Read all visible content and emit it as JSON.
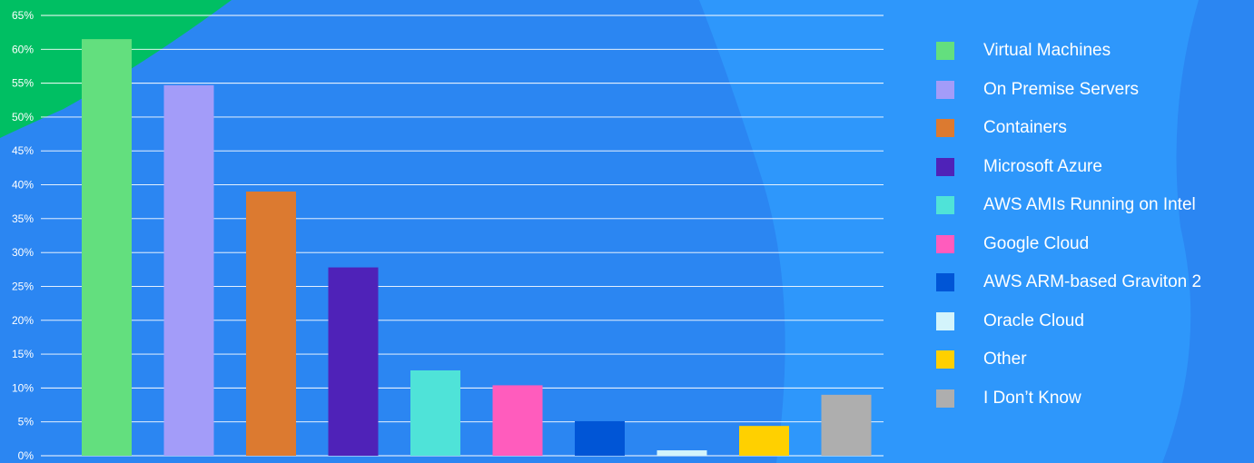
{
  "colors": {
    "background": "#2b86f2",
    "gridline": "#ffffff",
    "axis_text": "#ffffff"
  },
  "chart_data": {
    "type": "bar",
    "title": "",
    "xlabel": "",
    "ylabel": "",
    "ylim": [
      0,
      65
    ],
    "yticks": [
      "0%",
      "5%",
      "10%",
      "15%",
      "20%",
      "25%",
      "30%",
      "35%",
      "40%",
      "45%",
      "50%",
      "55%",
      "60%",
      "65%"
    ],
    "grid": true,
    "legend_position": "right",
    "categories": [
      "Virtual Machines",
      "On Premise Servers",
      "Containers",
      "Microsoft Azure",
      "AWS AMIs Running on Intel",
      "Google Cloud",
      "AWS ARM-based Graviton 2",
      "Oracle Cloud",
      "Other",
      "I Don’t Know"
    ],
    "values": [
      61.5,
      54.7,
      39.0,
      27.8,
      12.6,
      10.4,
      5.1,
      0.8,
      4.4,
      9.0
    ],
    "colors": [
      "#63df7e",
      "#a39cf9",
      "#dc7a30",
      "#4f22b8",
      "#4fe3d8",
      "#ff5cbd",
      "#0055d6",
      "#d3f4fb",
      "#ffd000",
      "#aeaeae"
    ]
  }
}
